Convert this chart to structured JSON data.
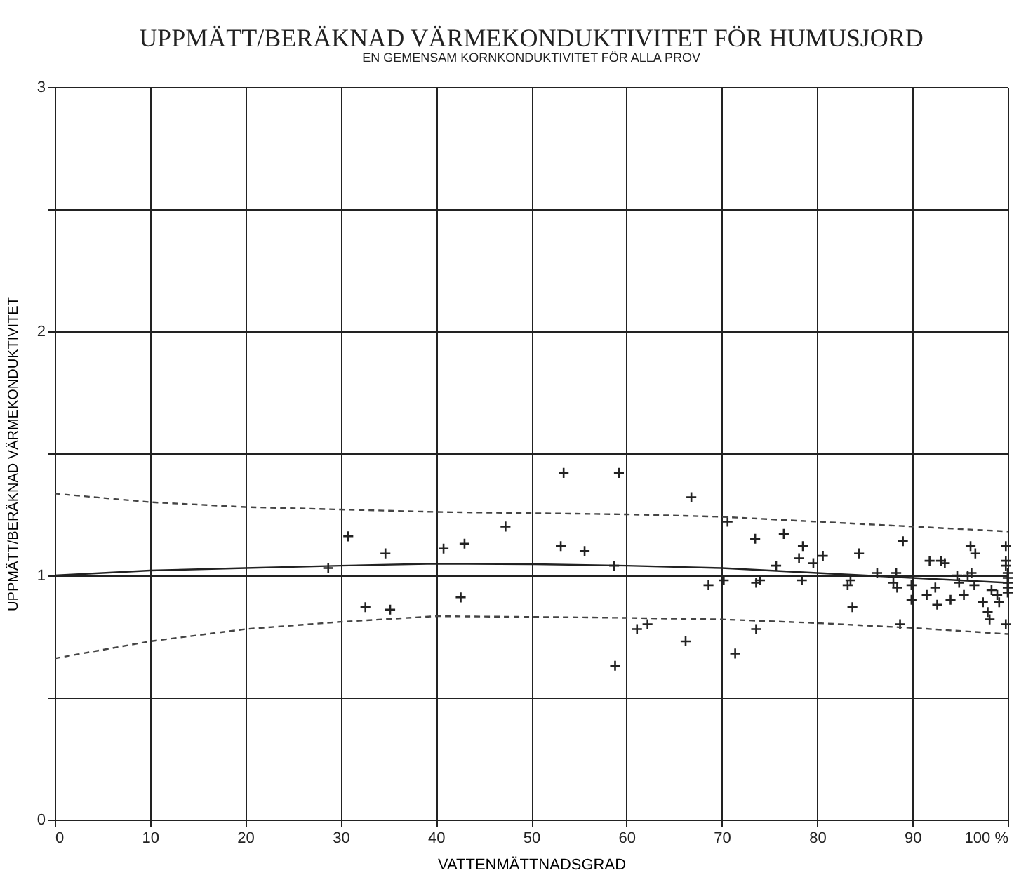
{
  "chart_data": {
    "type": "scatter",
    "title": "UPPMÄTT/BERÄKNAD VÄRMEKONDUKTIVITET FÖR HUMUSJORD",
    "subtitle": "EN GEMENSAM KORNKONDUKTIVITET FÖR ALLA PROV",
    "xlabel": "VATTENMÄTTNADSGRAD",
    "ylabel": "UPPMÄTT/BERÄKNAD VÄRMEKONDUKTIVITET",
    "xlim": [
      0,
      100
    ],
    "ylim": [
      0,
      3
    ],
    "xticks": [
      0,
      10,
      20,
      30,
      40,
      50,
      60,
      70,
      80,
      90,
      {
        "value": 100,
        "label": "100 %"
      }
    ],
    "yticks": [
      0,
      {
        "value": 0.5,
        "label": null
      },
      1,
      {
        "value": 1.5,
        "label": null
      },
      2,
      {
        "value": 2.5,
        "label": null
      },
      3
    ],
    "grid": true,
    "series": [
      {
        "color": "#222222",
        "marker": "cross",
        "x": [
          28.7,
          30.8,
          34.7,
          32.6,
          35.2,
          40.8,
          43.0,
          42.6,
          47.3,
          53.4,
          53.1,
          55.6,
          59.2,
          58.7,
          58.8,
          61.1,
          62.2,
          66.8,
          66.2,
          70.6,
          71.4,
          68.6,
          70.2,
          73.5,
          76.5,
          73.6,
          74.0,
          73.6,
          75.7,
          78.5,
          78.1,
          78.4,
          79.6,
          80.6,
          84.4,
          83.2,
          83.5,
          83.7,
          86.3,
          89.0,
          88.3,
          88.0,
          88.4,
          88.7,
          89.9,
          89.9,
          91.5,
          91.8,
          92.4,
          92.6,
          93.0,
          93.4,
          94.0,
          94.7,
          94.9,
          95.4,
          95.8,
          96.1,
          96.6,
          96.2,
          96.5,
          97.4,
          98.3,
          97.9,
          98.1,
          98.9,
          99.1,
          99.8,
          99.8,
          99.8,
          100,
          100,
          100,
          100,
          100,
          99.8
        ],
        "values": [
          1.03,
          1.16,
          1.09,
          0.87,
          0.86,
          1.11,
          1.13,
          0.91,
          1.2,
          1.42,
          1.12,
          1.1,
          1.42,
          1.04,
          0.63,
          0.78,
          0.8,
          1.32,
          0.73,
          1.22,
          0.68,
          0.96,
          0.98,
          1.15,
          1.17,
          0.97,
          0.98,
          0.78,
          1.04,
          1.12,
          1.07,
          0.98,
          1.05,
          1.08,
          1.09,
          0.96,
          0.98,
          0.87,
          1.01,
          1.14,
          1.01,
          0.97,
          0.95,
          0.8,
          0.96,
          0.9,
          0.92,
          1.06,
          0.95,
          0.88,
          1.06,
          1.05,
          0.9,
          1.0,
          0.97,
          0.92,
          1.0,
          1.12,
          1.09,
          1.01,
          0.96,
          0.89,
          0.94,
          0.85,
          0.82,
          0.92,
          0.89,
          1.12,
          1.06,
          1.04,
          1.01,
          0.99,
          0.97,
          0.95,
          0.93,
          0.8
        ]
      },
      {
        "type": "line",
        "color": "#222222",
        "line_style": "solid",
        "x": [
          0,
          10,
          20,
          30,
          40,
          50,
          60,
          70,
          80,
          90,
          100
        ],
        "values": [
          1.0,
          1.02,
          1.03,
          1.04,
          1.048,
          1.046,
          1.04,
          1.03,
          1.01,
          0.99,
          0.97
        ]
      },
      {
        "type": "line",
        "color": "#444444",
        "line_style": "dashed",
        "x": [
          0,
          10,
          20,
          30,
          40,
          50,
          60,
          70,
          80,
          90,
          100
        ],
        "values": [
          1.335,
          1.3,
          1.28,
          1.27,
          1.26,
          1.255,
          1.25,
          1.24,
          1.22,
          1.2,
          1.18
        ]
      },
      {
        "type": "line",
        "color": "#444444",
        "line_style": "dashed",
        "x": [
          0,
          10,
          20,
          30,
          40,
          50,
          60,
          70,
          80,
          90,
          100
        ],
        "values": [
          0.66,
          0.73,
          0.78,
          0.81,
          0.833,
          0.83,
          0.826,
          0.82,
          0.805,
          0.785,
          0.76
        ]
      }
    ]
  }
}
